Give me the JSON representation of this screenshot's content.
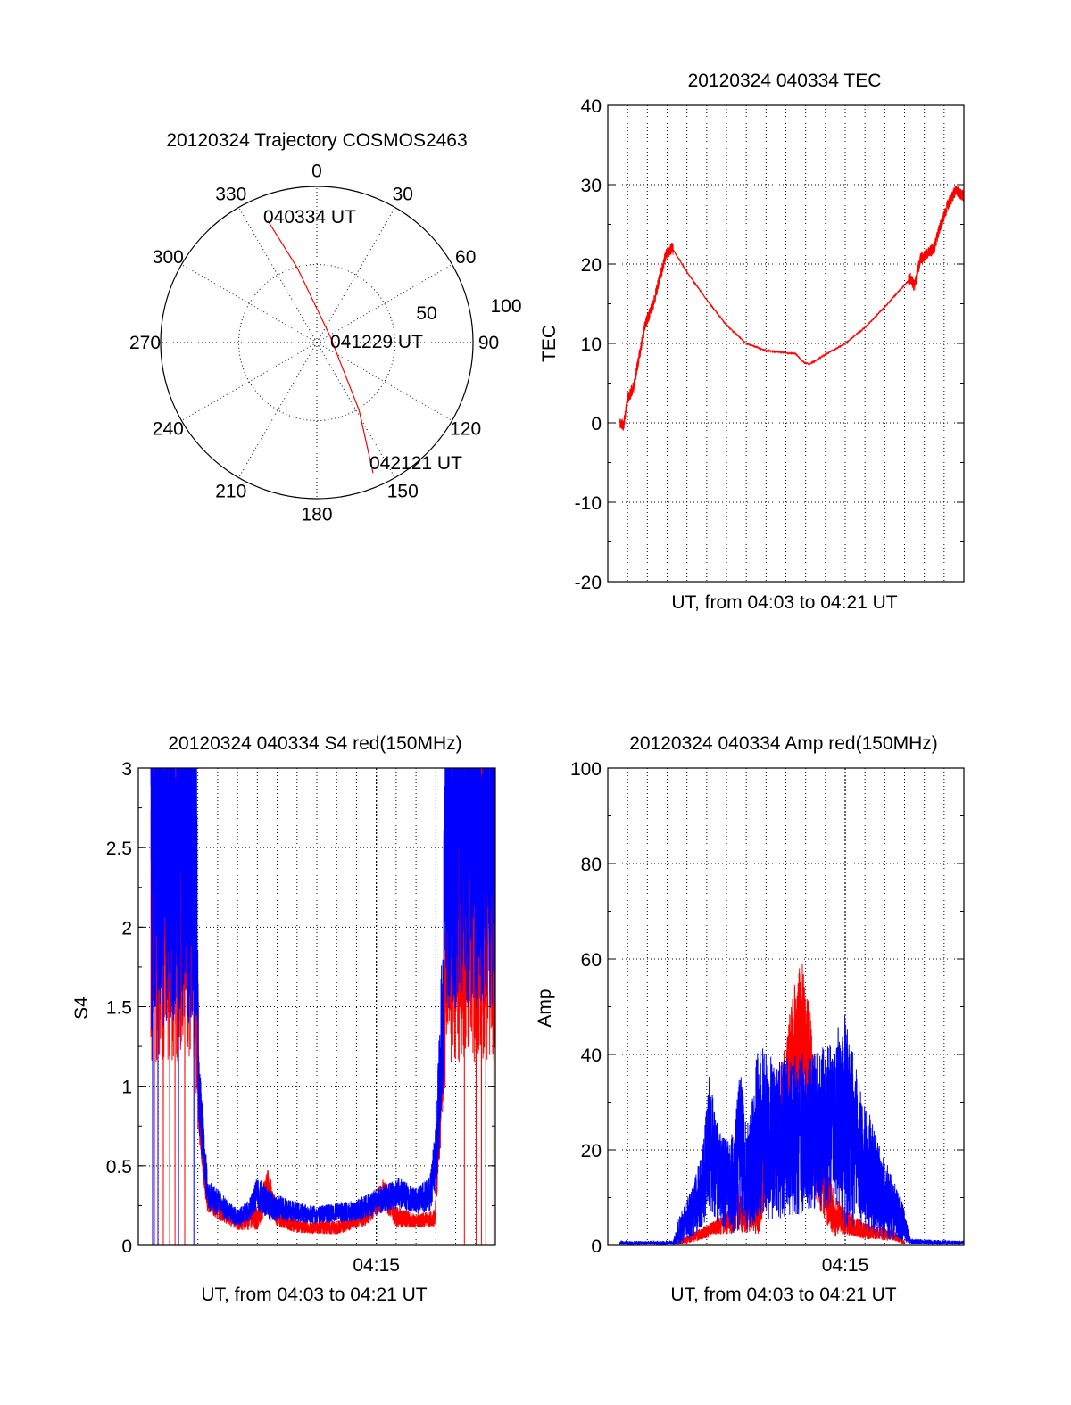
{
  "colors": {
    "red": "#ff0000",
    "blue": "#0000ff",
    "axis": "#000000"
  },
  "chart_data": [
    {
      "type": "polar",
      "title": "20120324 Trajectory COSMOS2463",
      "angle_labels": [
        "0",
        "30",
        "60",
        "90",
        "120",
        "150",
        "180",
        "210",
        "240",
        "270",
        "300",
        "330"
      ],
      "angles": [
        0,
        30,
        60,
        90,
        120,
        150,
        180,
        210,
        240,
        270,
        300,
        330
      ],
      "radial_range": [
        0,
        100
      ],
      "radial_labels": [
        "50",
        "100"
      ],
      "radial_values": [
        50,
        100
      ],
      "series": [
        {
          "name": "trajectory",
          "color": "red",
          "points_az_r": [
            [
              338.1,
              84
            ],
            [
              345.3,
              49.6
            ],
            [
              65,
              9.4
            ],
            [
              148,
              51
            ],
            [
              156.7,
              91
            ]
          ]
        }
      ],
      "annotations": [
        {
          "text": "040334 UT",
          "az": 338.1,
          "r": 84
        },
        {
          "text": "041229 UT",
          "az": 65,
          "r": 9.4
        },
        {
          "text": "042121 UT",
          "az": 156.7,
          "r": 91
        }
      ]
    },
    {
      "type": "line",
      "title": "20120324 040334 TEC",
      "xlabel": "UT, from 04:03 to 04:21 UT",
      "ylabel": "TEC",
      "xlim_minutes": [
        3,
        21
      ],
      "ylim": [
        -20,
        40
      ],
      "yticks": [
        -20,
        -10,
        0,
        10,
        20,
        30,
        40
      ],
      "ytick_labels": [
        "-20",
        "-10",
        "0",
        "10",
        "20",
        "30",
        "40"
      ],
      "yminor_step": 5,
      "grid": true,
      "xtick_labels": [],
      "series": [
        {
          "name": "TEC",
          "color": "red",
          "noise": 0.25,
          "points": [
            [
              3.6,
              0
            ],
            [
              3.8,
              -0.3
            ],
            [
              4.0,
              3
            ],
            [
              4.3,
              4.5
            ],
            [
              4.6,
              8.5
            ],
            [
              4.9,
              12.5
            ],
            [
              5.3,
              15
            ],
            [
              5.7,
              19
            ],
            [
              5.95,
              21.3
            ],
            [
              6.25,
              22
            ],
            [
              7.0,
              19
            ],
            [
              8.0,
              15.5
            ],
            [
              9.0,
              12.3
            ],
            [
              10.0,
              10
            ],
            [
              11.0,
              9.1
            ],
            [
              12.0,
              8.8
            ],
            [
              12.5,
              8.7
            ],
            [
              12.9,
              7.6
            ],
            [
              13.2,
              7.4
            ],
            [
              14.0,
              8.6
            ],
            [
              15.0,
              10
            ],
            [
              16.0,
              12
            ],
            [
              17.0,
              14.6
            ],
            [
              18.3,
              18.2
            ],
            [
              18.5,
              17.2
            ],
            [
              18.8,
              20.6
            ],
            [
              19.5,
              22
            ],
            [
              19.8,
              24.8
            ],
            [
              20.2,
              27.5
            ],
            [
              20.6,
              29.3
            ],
            [
              21.0,
              28.6
            ]
          ]
        }
      ]
    },
    {
      "type": "line",
      "title": "20120324 040334 S4 red(150MHz)",
      "xlabel": "UT, from 04:03 to 04:21 UT",
      "ylabel": "S4",
      "xlim_minutes": [
        3,
        21
      ],
      "ylim": [
        0,
        3
      ],
      "yticks": [
        0,
        0.5,
        1,
        1.5,
        2,
        2.5,
        3
      ],
      "ytick_labels": [
        "0",
        "0.5",
        "1",
        "1.5",
        "2",
        "2.5",
        "3"
      ],
      "yminor_step": 0.25,
      "grid": true,
      "xtick_labels": [
        {
          "minute": 15,
          "label": "04:15"
        }
      ],
      "series": [
        {
          "name": "red",
          "color": "red",
          "envelope": [
            [
              3.63,
              2.4,
              0.9
            ],
            [
              5.85,
              2.4,
              0.9
            ],
            [
              6.0,
              0.95,
              0.15
            ],
            [
              6.45,
              0.3,
              0.06
            ],
            [
              7.0,
              0.23,
              0.05
            ],
            [
              8.0,
              0.15,
              0.04
            ],
            [
              9.0,
              0.18,
              0.06
            ],
            [
              9.5,
              0.35,
              0.1
            ],
            [
              10.0,
              0.2,
              0.06
            ],
            [
              11.0,
              0.12,
              0.03
            ],
            [
              13.0,
              0.11,
              0.03
            ],
            [
              14.5,
              0.18,
              0.04
            ],
            [
              15.4,
              0.33,
              0.07
            ],
            [
              16.0,
              0.18,
              0.05
            ],
            [
              17.0,
              0.15,
              0.03
            ],
            [
              17.95,
              0.17,
              0.04
            ],
            [
              18.4,
              1.3,
              0.3
            ],
            [
              18.6,
              2.4,
              0.9
            ],
            [
              21.0,
              2.4,
              0.9
            ]
          ],
          "drop_to_zero_minutes": [
            3.81,
            4.26,
            4.58,
            4.85,
            5.34,
            19.44,
            20.03,
            20.3,
            20.52,
            20.93
          ]
        },
        {
          "name": "blue",
          "color": "blue",
          "envelope": [
            [
              3.63,
              2.6,
              0.9
            ],
            [
              5.9,
              2.6,
              0.9
            ],
            [
              6.05,
              0.95,
              0.2
            ],
            [
              6.5,
              0.32,
              0.07
            ],
            [
              7.0,
              0.27,
              0.06
            ],
            [
              8.0,
              0.17,
              0.04
            ],
            [
              8.6,
              0.22,
              0.05
            ],
            [
              9.0,
              0.33,
              0.08
            ],
            [
              9.6,
              0.25,
              0.07
            ],
            [
              10.5,
              0.22,
              0.05
            ],
            [
              12.0,
              0.19,
              0.04
            ],
            [
              14.0,
              0.22,
              0.05
            ],
            [
              15.0,
              0.27,
              0.06
            ],
            [
              16.1,
              0.33,
              0.07
            ],
            [
              17.0,
              0.28,
              0.06
            ],
            [
              17.7,
              0.32,
              0.08
            ],
            [
              18.0,
              0.55,
              0.15
            ],
            [
              18.3,
              1.3,
              0.4
            ],
            [
              18.5,
              2.6,
              0.8
            ],
            [
              21.0,
              2.6,
              0.8
            ]
          ],
          "drop_to_zero_minutes": [
            3.72,
            3.99,
            5.03,
            5.8
          ]
        }
      ]
    },
    {
      "type": "line",
      "title": "20120324 040334 Amp red(150MHz)",
      "xlabel": "UT, from 04:03 to 04:21 UT",
      "ylabel": "Amp",
      "xlim_minutes": [
        3,
        21
      ],
      "ylim": [
        0,
        100
      ],
      "yticks": [
        0,
        20,
        40,
        60,
        80,
        100
      ],
      "ytick_labels": [
        "0",
        "20",
        "40",
        "60",
        "80",
        "100"
      ],
      "yminor_step": 10,
      "grid": true,
      "xtick_labels": [
        {
          "minute": 15,
          "label": "04:15"
        }
      ],
      "series": [
        {
          "name": "red",
          "color": "red",
          "envelope": [
            [
              6.55,
              0.5,
              0.3
            ],
            [
              7.5,
              2,
              0.8
            ],
            [
              8.6,
              4,
              1.2
            ],
            [
              9.2,
              5,
              2
            ],
            [
              9.5,
              9,
              4
            ],
            [
              9.9,
              5,
              2
            ],
            [
              10.3,
              10,
              5
            ],
            [
              10.6,
              6,
              3
            ],
            [
              11.0,
              18,
              6
            ],
            [
              11.5,
              22,
              8
            ],
            [
              12.0,
              32,
              8
            ],
            [
              12.7,
              45,
              12
            ],
            [
              13.2,
              38,
              10
            ],
            [
              13.5,
              20,
              8
            ],
            [
              13.9,
              12,
              5
            ],
            [
              14.5,
              6,
              3
            ],
            [
              15.0,
              5,
              2
            ],
            [
              16.0,
              3,
              1.2
            ],
            [
              17.5,
              2,
              0.8
            ],
            [
              18.0,
              0.6,
              0.3
            ]
          ]
        },
        {
          "name": "blue",
          "color": "blue",
          "envelope": [
            [
              3.6,
              0.5,
              0.3
            ],
            [
              6.3,
              0.5,
              0.3
            ],
            [
              6.6,
              3,
              2
            ],
            [
              7.3,
              7,
              4
            ],
            [
              7.8,
              12,
              6
            ],
            [
              8.1,
              22,
              10
            ],
            [
              8.6,
              14,
              7
            ],
            [
              9.2,
              12,
              7
            ],
            [
              9.7,
              20,
              12
            ],
            [
              10.1,
              14,
              8
            ],
            [
              10.6,
              24,
              13
            ],
            [
              11.5,
              22,
              12
            ],
            [
              12.5,
              23,
              12
            ],
            [
              13.5,
              24,
              12
            ],
            [
              14.3,
              26,
              13
            ],
            [
              15.0,
              26,
              16
            ],
            [
              15.8,
              18,
              10
            ],
            [
              16.6,
              13,
              8
            ],
            [
              17.3,
              8,
              5
            ],
            [
              17.9,
              5,
              3
            ],
            [
              18.3,
              0.8,
              0.4
            ],
            [
              21.0,
              0.5,
              0.3
            ]
          ]
        }
      ]
    }
  ]
}
